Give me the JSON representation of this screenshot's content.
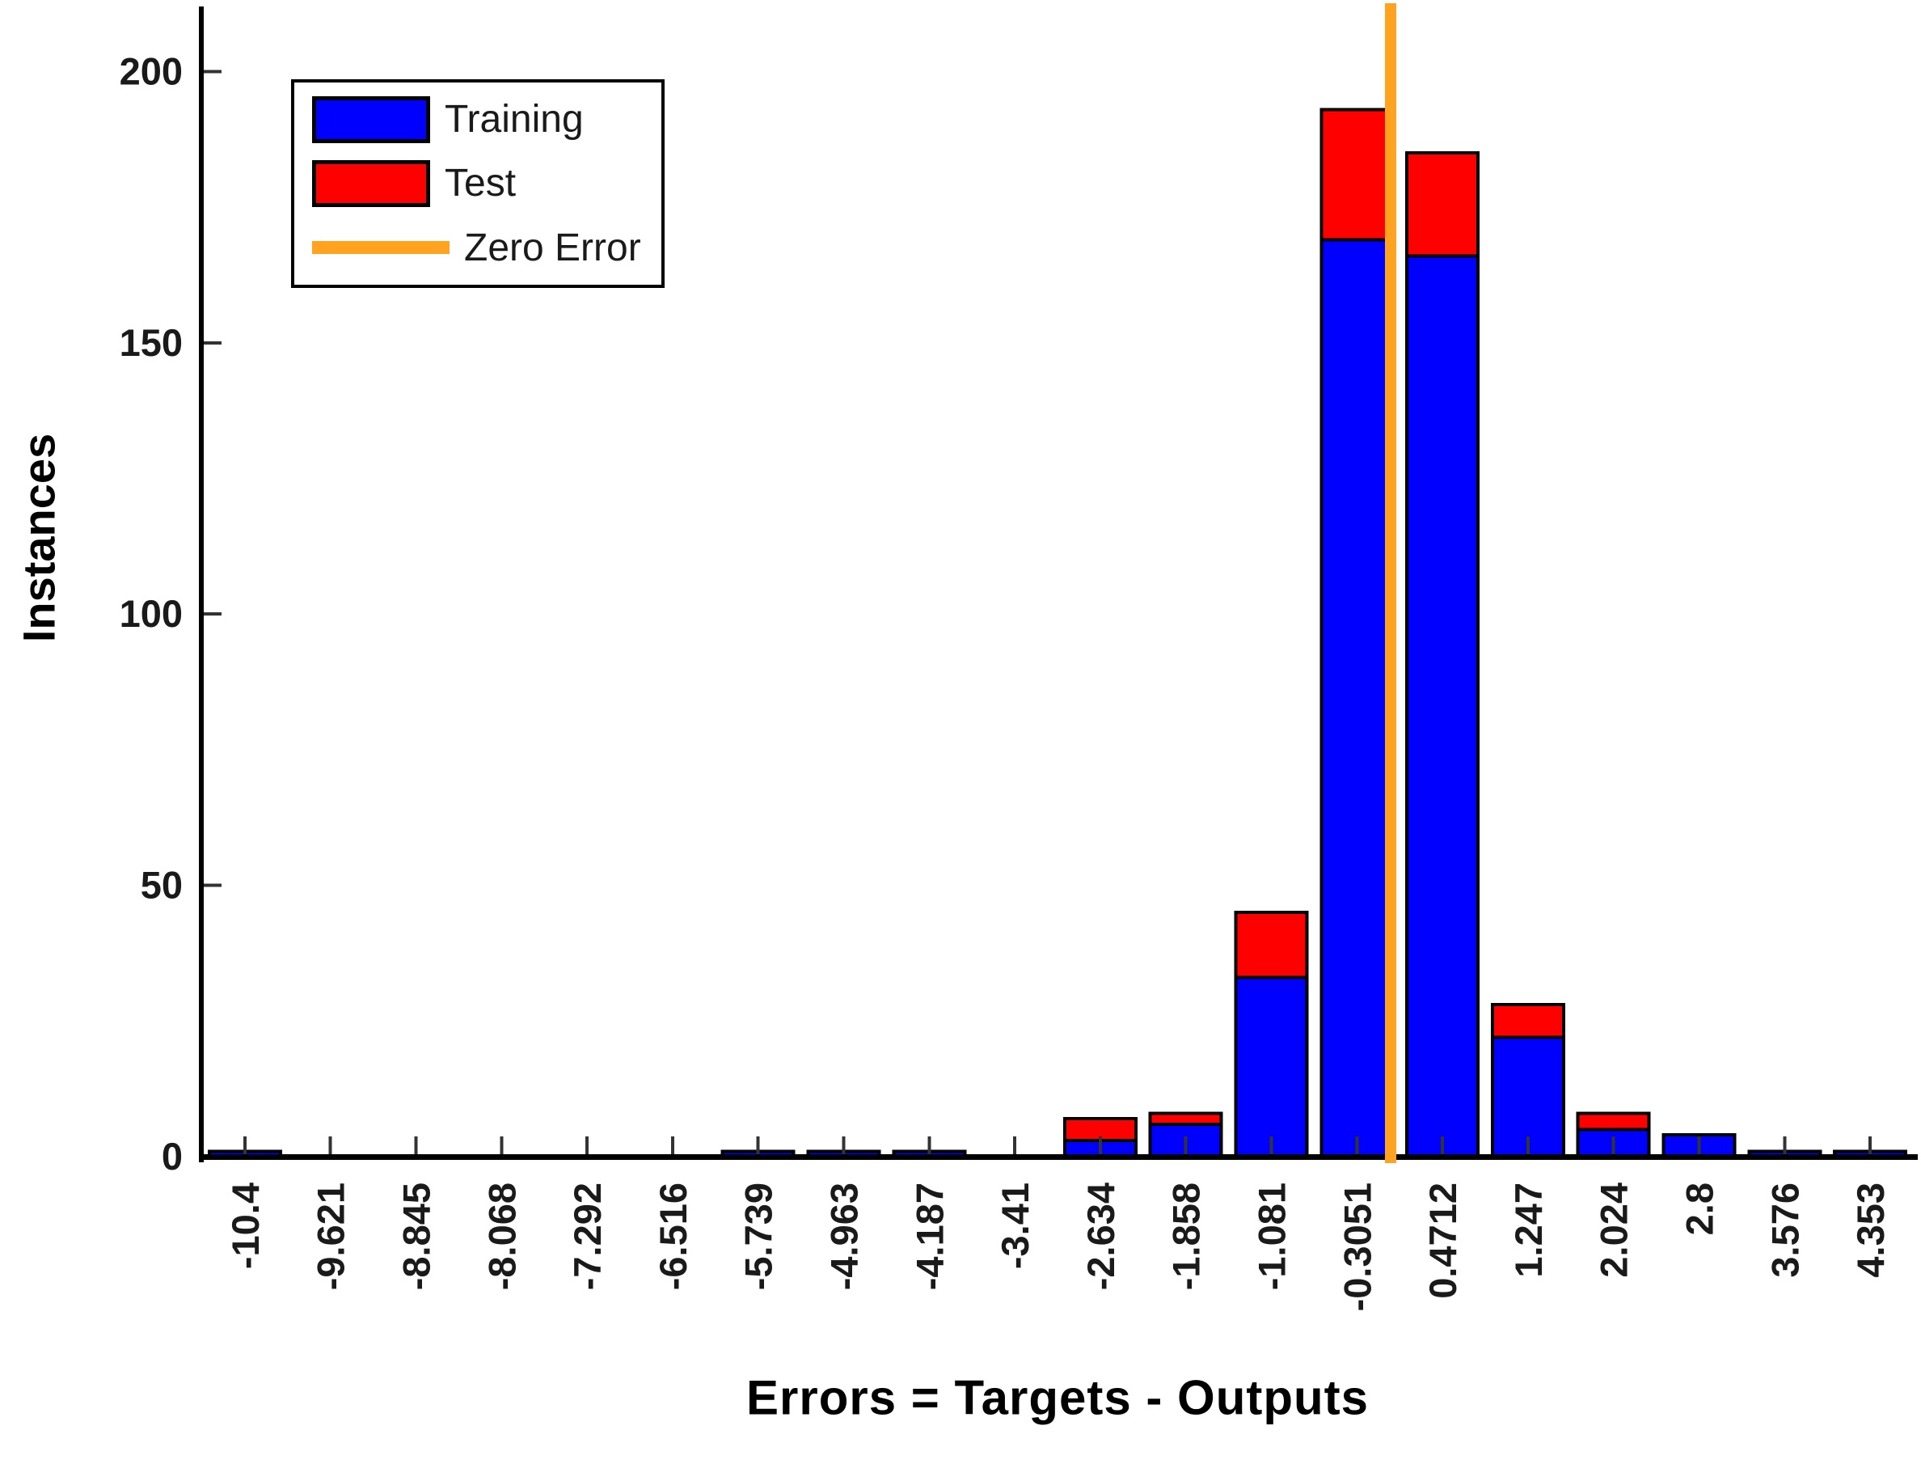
{
  "chart_data": {
    "type": "bar",
    "stacked": true,
    "title": "",
    "xlabel": "Errors = Targets - Outputs",
    "ylabel": "Instances",
    "categories": [
      "-10.4",
      "-9.621",
      "-8.845",
      "-8.068",
      "-7.292",
      "-6.516",
      "-5.739",
      "-4.963",
      "-4.187",
      "-3.41",
      "-2.634",
      "-1.858",
      "-1.081",
      "-0.3051",
      "0.4712",
      "1.247",
      "2.024",
      "2.8",
      "3.576",
      "4.353"
    ],
    "bin_centers_numeric": [
      -10.4,
      -9.621,
      -8.845,
      -8.068,
      -7.292,
      -6.516,
      -5.739,
      -4.963,
      -4.187,
      -3.41,
      -2.634,
      -1.858,
      -1.081,
      -0.3051,
      0.4712,
      1.247,
      2.024,
      2.8,
      3.576,
      4.353
    ],
    "series": [
      {
        "name": "Training",
        "color": "#0000ff",
        "values": [
          1,
          0,
          0,
          0,
          0,
          0,
          1,
          1,
          1,
          0,
          3,
          6,
          33,
          169,
          166,
          22,
          5,
          4,
          1,
          1
        ]
      },
      {
        "name": "Test",
        "color": "#ff0000",
        "values": [
          0,
          0,
          0,
          0,
          0,
          0,
          0,
          0,
          0,
          0,
          4,
          2,
          12,
          24,
          19,
          6,
          3,
          0,
          0,
          0
        ]
      }
    ],
    "zero_error": {
      "label": "Zero Error",
      "color": "#ffa321",
      "x_value": 0
    },
    "yticks": [
      0,
      50,
      100,
      150,
      200
    ],
    "ylim": [
      0,
      212
    ],
    "grid": false,
    "legend_position": "top-left",
    "bar_border_color": "#000000",
    "axis_color": "#000000",
    "tick_label_color": "#1a1a1a"
  }
}
